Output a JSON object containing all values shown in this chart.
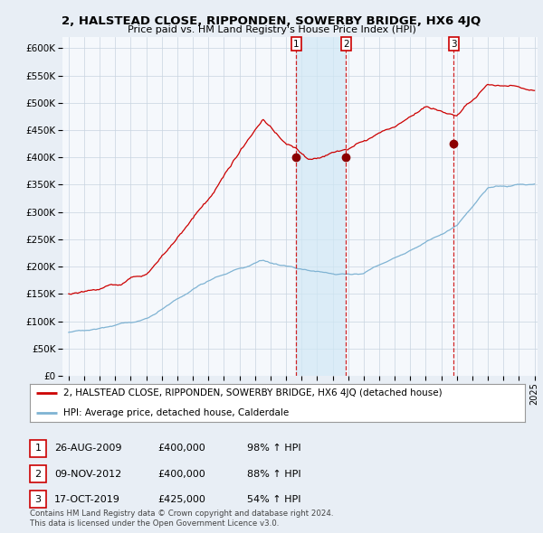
{
  "title": "2, HALSTEAD CLOSE, RIPPONDEN, SOWERBY BRIDGE, HX6 4JQ",
  "subtitle": "Price paid vs. HM Land Registry's House Price Index (HPI)",
  "ylim": [
    0,
    620000
  ],
  "yticks": [
    0,
    50000,
    100000,
    150000,
    200000,
    250000,
    300000,
    350000,
    400000,
    450000,
    500000,
    550000,
    600000
  ],
  "ytick_labels": [
    "£0",
    "£50K",
    "£100K",
    "£150K",
    "£200K",
    "£250K",
    "£300K",
    "£350K",
    "£400K",
    "£450K",
    "£500K",
    "£550K",
    "£600K"
  ],
  "hpi_color": "#7fb3d3",
  "price_color": "#cc0000",
  "shade_color": "#d0e8f5",
  "sale_dates": [
    2009.65,
    2012.86,
    2019.79
  ],
  "sale_prices": [
    400000,
    400000,
    425000
  ],
  "sale_labels": [
    "1",
    "2",
    "3"
  ],
  "legend_line1": "2, HALSTEAD CLOSE, RIPPONDEN, SOWERBY BRIDGE, HX6 4JQ (detached house)",
  "legend_line2": "HPI: Average price, detached house, Calderdale",
  "table_rows": [
    [
      "1",
      "26-AUG-2009",
      "£400,000",
      "98% ↑ HPI"
    ],
    [
      "2",
      "09-NOV-2012",
      "£400,000",
      "88% ↑ HPI"
    ],
    [
      "3",
      "17-OCT-2019",
      "£425,000",
      "54% ↑ HPI"
    ]
  ],
  "footnote1": "Contains HM Land Registry data © Crown copyright and database right 2024.",
  "footnote2": "This data is licensed under the Open Government Licence v3.0.",
  "background_color": "#e8eef5",
  "plot_bg_color": "#f5f8fc"
}
